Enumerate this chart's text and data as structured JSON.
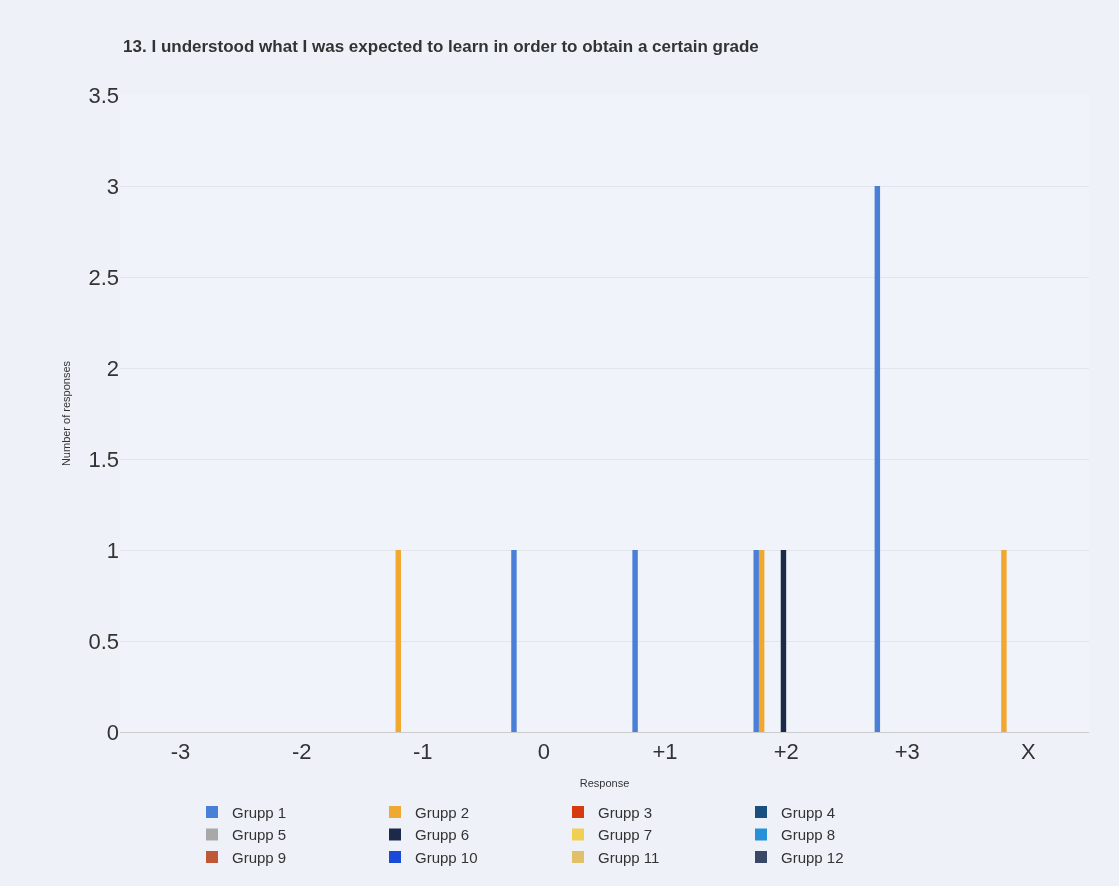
{
  "chart_data": {
    "type": "bar",
    "title": "13. I understood what I was expected to learn in order to obtain a certain grade",
    "xlabel": "Response",
    "ylabel": "Number of responses",
    "categories": [
      "-3",
      "-2",
      "-1",
      "0",
      "+1",
      "+2",
      "+3",
      "X"
    ],
    "series": [
      {
        "name": "Grupp 1",
        "color": "#4a7fd8",
        "values": [
          0,
          0,
          0,
          1,
          1,
          1,
          3,
          0
        ]
      },
      {
        "name": "Grupp 2",
        "color": "#f0a830",
        "values": [
          0,
          0,
          1,
          0,
          0,
          1,
          0,
          1
        ]
      },
      {
        "name": "Grupp 3",
        "color": "#d83a10",
        "values": [
          0,
          0,
          0,
          0,
          0,
          0,
          0,
          0
        ]
      },
      {
        "name": "Grupp 4",
        "color": "#1a5080",
        "values": [
          0,
          0,
          0,
          0,
          0,
          0,
          0,
          0
        ]
      },
      {
        "name": "Grupp 5",
        "color": "#a8a8a8",
        "values": [
          0,
          0,
          0,
          0,
          0,
          0,
          0,
          0
        ]
      },
      {
        "name": "Grupp 6",
        "color": "#1a2a48",
        "values": [
          0,
          0,
          0,
          0,
          0,
          1,
          0,
          0
        ]
      },
      {
        "name": "Grupp 7",
        "color": "#f0d050",
        "values": [
          0,
          0,
          0,
          0,
          0,
          0,
          0,
          0
        ]
      },
      {
        "name": "Grupp 8",
        "color": "#2890d8",
        "values": [
          0,
          0,
          0,
          0,
          0,
          0,
          0,
          0
        ]
      },
      {
        "name": "Grupp 9",
        "color": "#c05838",
        "values": [
          0,
          0,
          0,
          0,
          0,
          0,
          0,
          0
        ]
      },
      {
        "name": "Grupp 10",
        "color": "#1a4ad8",
        "values": [
          0,
          0,
          0,
          0,
          0,
          0,
          0,
          0
        ]
      },
      {
        "name": "Grupp 11",
        "color": "#e0c068",
        "values": [
          0,
          0,
          0,
          0,
          0,
          0,
          0,
          0
        ]
      },
      {
        "name": "Grupp 12",
        "color": "#3a4868",
        "values": [
          0,
          0,
          0,
          0,
          0,
          0,
          0,
          0
        ]
      }
    ],
    "ylim": [
      0,
      3.5
    ],
    "yticks": [
      0,
      0.5,
      1,
      1.5,
      2,
      2.5,
      3,
      3.5
    ],
    "grid": "y",
    "legend": "bottom"
  }
}
